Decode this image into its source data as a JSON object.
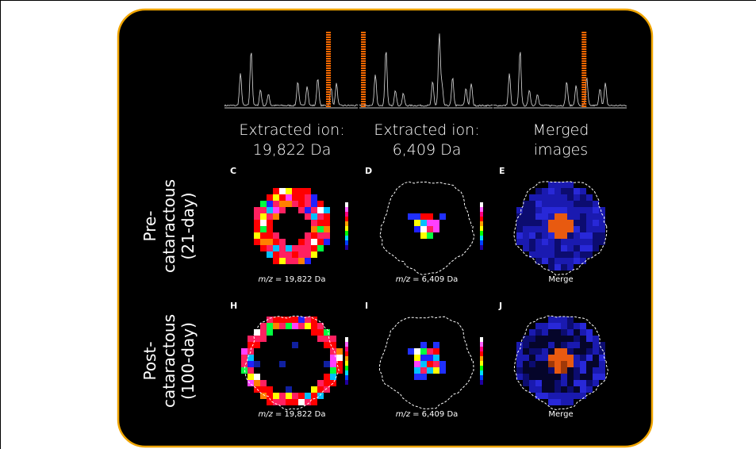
{
  "headers": [
    {
      "lines": [
        "Extracted ion:",
        "19,822 Da"
      ]
    },
    {
      "lines": [
        "Extracted ion:",
        "6,409 Da"
      ]
    },
    {
      "lines": [
        "Merged",
        "images"
      ]
    }
  ],
  "rows": [
    {
      "lines": [
        "Pre-",
        "cataractous",
        "(21-day)"
      ],
      "panels": [
        {
          "letter": "C",
          "caption_italic": "m/z",
          "caption": "= 19,822 Da"
        },
        {
          "letter": "D",
          "caption_italic": "m/z",
          "caption": "= 6,409 Da"
        },
        {
          "letter": "E",
          "caption": "Merge"
        }
      ]
    },
    {
      "lines": [
        "Post-",
        "cataractous",
        "(100-day)"
      ],
      "panels": [
        {
          "letter": "H",
          "caption_italic": "m/z",
          "caption": "= 19,822 Da"
        },
        {
          "letter": "I",
          "caption_italic": "m/z",
          "caption": "= 6,409 Da"
        },
        {
          "letter": "J",
          "caption": "Merge"
        }
      ]
    }
  ]
}
